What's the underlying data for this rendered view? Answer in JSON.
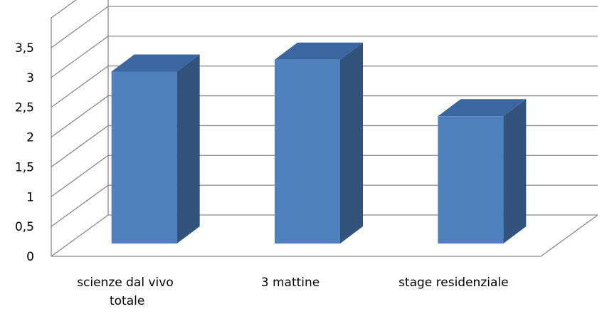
{
  "chart_data": {
    "type": "bar",
    "style": "3d-clustered-column",
    "categories": [
      [
        "scienze dal vivo",
        "totale"
      ],
      [
        "3 mattine"
      ],
      [
        "stage residenziale"
      ]
    ],
    "values": [
      3.1,
      3.3,
      2.35
    ],
    "yticks": [
      "0",
      "0,5",
      "1",
      "1,5",
      "2",
      "2,5",
      "3",
      "3,5"
    ],
    "ylim": [
      0,
      3.5
    ],
    "grid": true,
    "colors": {
      "front": "#4F81BD",
      "side": "#34537C",
      "top": "#3B67A1",
      "grid": "#898989"
    }
  }
}
